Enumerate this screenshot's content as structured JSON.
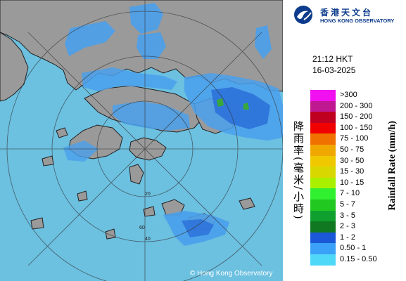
{
  "observatory": {
    "name_cn": "香港天文台",
    "name_en": "HONG KONG OBSERVATORY"
  },
  "timestamp": {
    "time": "21:12 HKT",
    "date": "16-03-2025"
  },
  "colors": {
    "sea": "#6cc0e0",
    "land": "#9a9a9a",
    "rain_light": "#4aa0ec",
    "rain_medium": "#2a6ed8",
    "rain_heavy": "#38a838"
  },
  "range_rings": {
    "labels": [
      "20",
      "40",
      "60"
    ]
  },
  "legend": {
    "title_cn": "降雨率(毫米/小時)",
    "title_en": "Rainfall Rate (mm/h)",
    "items": [
      {
        "label": ">300",
        "color": "#f010f0"
      },
      {
        "label": "200 - 300",
        "color": "#c01890"
      },
      {
        "label": "150 - 200",
        "color": "#c00020"
      },
      {
        "label": "100 - 150",
        "color": "#f00000"
      },
      {
        "label": "75 - 100",
        "color": "#f07000"
      },
      {
        "label": "50 - 75",
        "color": "#f0a800"
      },
      {
        "label": "30 - 50",
        "color": "#f0c800"
      },
      {
        "label": "15 - 30",
        "color": "#d8d800"
      },
      {
        "label": "10 - 15",
        "color": "#a8f000"
      },
      {
        "label": "7 - 10",
        "color": "#30f030"
      },
      {
        "label": "5 - 7",
        "color": "#20c820"
      },
      {
        "label": "3 - 5",
        "color": "#10a030"
      },
      {
        "label": "2 - 3",
        "color": "#107820"
      },
      {
        "label": "1 - 2",
        "color": "#1a58d8"
      },
      {
        "label": "0.50 - 1",
        "color": "#3aa0f8"
      },
      {
        "label": "0.15 - 0.50",
        "color": "#50d8f8"
      }
    ]
  },
  "copyright": "© Hong Kong Observatory"
}
